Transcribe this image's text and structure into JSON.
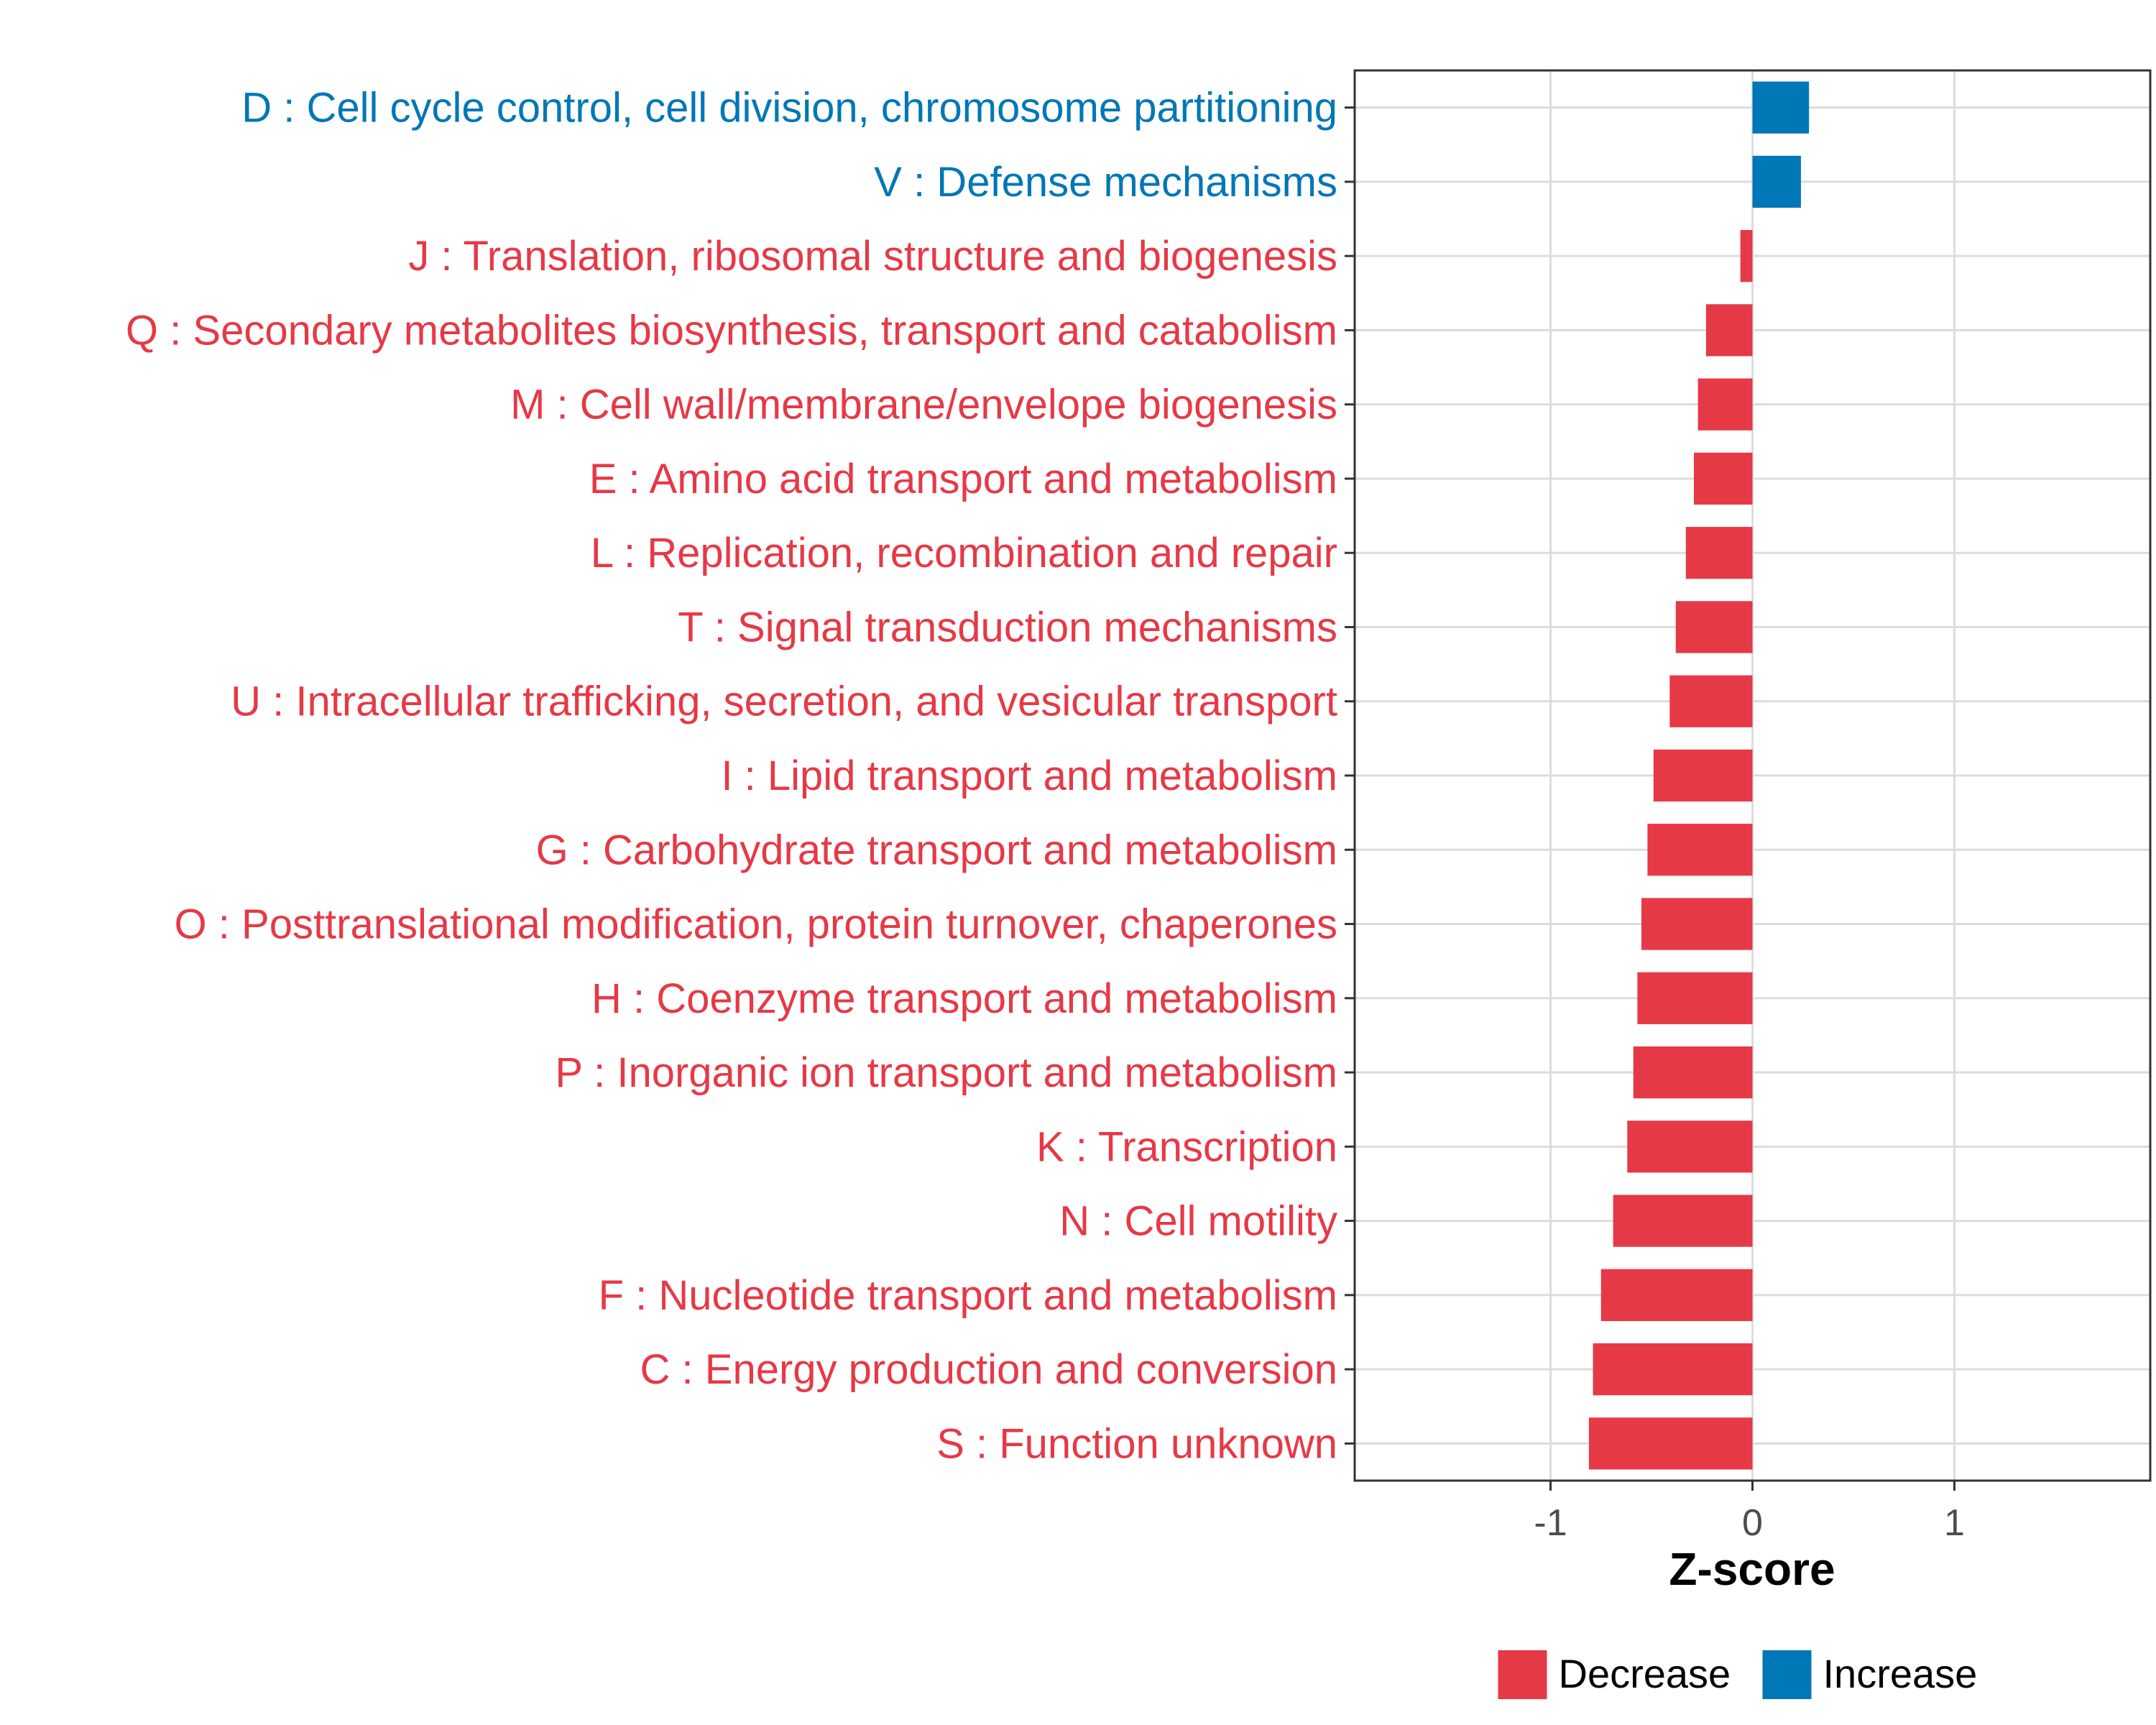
{
  "chart_data": {
    "type": "bar",
    "orientation": "horizontal",
    "title": "",
    "xlabel": "Z-score",
    "ylabel": "",
    "xlim": [
      -1.97,
      1.97
    ],
    "xticks": [
      "-1",
      "0",
      "1"
    ],
    "xtick_values": [
      -1,
      0,
      1
    ],
    "grid": true,
    "legend_position": "bottom",
    "colors": {
      "Decrease": "#e63946",
      "Increase": "#0077b6"
    },
    "legend": [
      {
        "name": "Decrease",
        "color": "#e63946"
      },
      {
        "name": "Increase",
        "color": "#0077b6"
      }
    ],
    "categories": [
      "D : Cell cycle control, cell division, chromosome partitioning",
      "V : Defense mechanisms",
      "J : Translation, ribosomal structure and biogenesis",
      "Q : Secondary metabolites biosynthesis, transport and catabolism",
      "M : Cell wall/membrane/envelope biogenesis",
      "E : Amino acid transport and metabolism",
      "L : Replication, recombination and repair",
      "T : Signal transduction mechanisms",
      "U : Intracellular trafficking, secretion, and vesicular transport",
      "I : Lipid transport and metabolism",
      "G : Carbohydrate transport and metabolism",
      "O : Posttranslational modification, protein turnover, chaperones",
      "H : Coenzyme transport and metabolism",
      "P : Inorganic ion transport and metabolism",
      "K : Transcription",
      "N : Cell motility",
      "F : Nucleotide transport and metabolism",
      "C : Energy production and conversion",
      "S : Function unknown"
    ],
    "values": [
      0.28,
      0.24,
      -0.06,
      -0.23,
      -0.27,
      -0.29,
      -0.33,
      -0.38,
      -0.41,
      -0.49,
      -0.52,
      -0.55,
      -0.57,
      -0.59,
      -0.62,
      -0.69,
      -0.75,
      -0.79,
      -0.81
    ],
    "direction": [
      "Increase",
      "Increase",
      "Decrease",
      "Decrease",
      "Decrease",
      "Decrease",
      "Decrease",
      "Decrease",
      "Decrease",
      "Decrease",
      "Decrease",
      "Decrease",
      "Decrease",
      "Decrease",
      "Decrease",
      "Decrease",
      "Decrease",
      "Decrease",
      "Decrease"
    ]
  }
}
